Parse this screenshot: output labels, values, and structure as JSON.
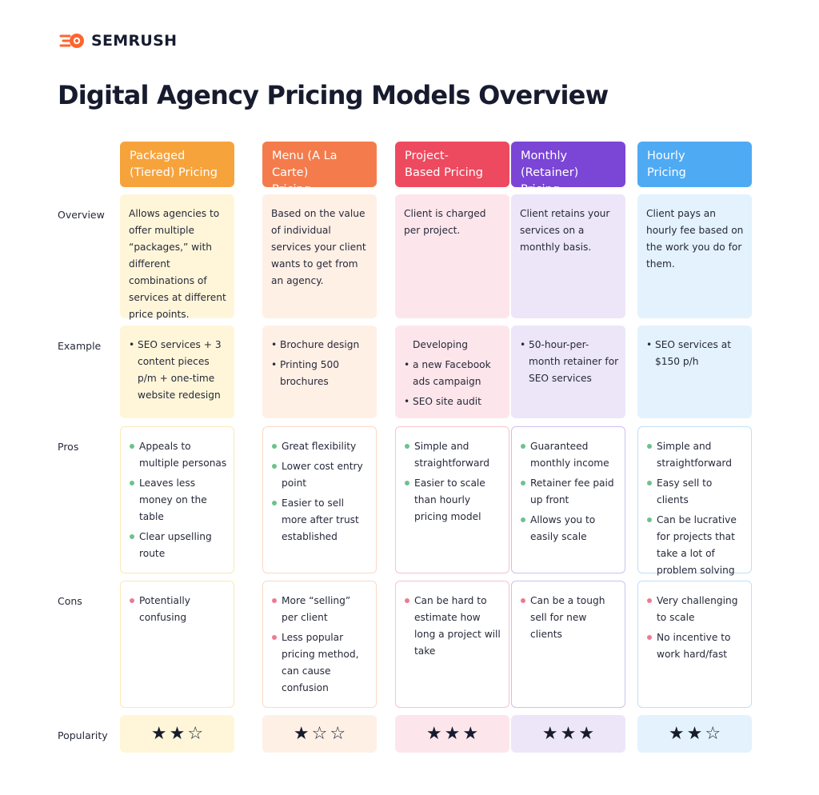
{
  "brand": {
    "name": "SEMRUSH",
    "accent": "#ff642d"
  },
  "title": "Digital Agency Pricing Models Overview",
  "row_labels": {
    "overview": "Overview",
    "example": "Example",
    "pros": "Pros",
    "cons": "Cons",
    "popularity": "Popularity"
  },
  "columns": [
    {
      "header": "Packaged\n(Tiered) Pricing",
      "color": "#f6a33c",
      "tint": "#fff6d9",
      "outline": "#fbe8b7",
      "overview": "Allows agencies to offer multiple “packages,” with different combinations of services at different price points.",
      "example": [
        "SEO services + 3 content pieces p/m + one-time website redesign"
      ],
      "pros": [
        "Appeals to multiple personas",
        "Leaves less money on the table",
        "Clear upselling route"
      ],
      "cons": [
        "Potentially confusing"
      ],
      "popularity": 2
    },
    {
      "header": "Menu (A La Carte)\nPricing",
      "color": "#f47c4c",
      "tint": "#fff0e6",
      "outline": "#fbd9c6",
      "overview": "Based on the value of individual services your client wants to get from an agency.",
      "example": [
        "Brochure design",
        "Printing 500 brochures"
      ],
      "pros": [
        "Great flexibility",
        "Lower cost entry point",
        "Easier to sell more after trust established"
      ],
      "cons": [
        "More “selling” per client",
        "Less popular pricing method, can cause confusion"
      ],
      "popularity": 1
    },
    {
      "header": "Project-\nBased Pricing",
      "color": "#ed4a5f",
      "tint": "#fde6eb",
      "outline": "#f8c3cf",
      "overview": "Client is charged per project.",
      "example_intro": "Developing",
      "example": [
        "a new Facebook ads campaign",
        "SEO site audit"
      ],
      "pros": [
        "Simple and straightforward",
        "Easier to scale than hourly pricing model"
      ],
      "cons": [
        "Can be hard to estimate how long a project will take"
      ],
      "popularity": 3
    },
    {
      "header": "Monthly\n(Retainer) Pricing",
      "color": "#7b45d6",
      "tint": "#ece6f8",
      "outline": "#cfc0ef",
      "overview": "Client retains your services on a monthly basis.",
      "example": [
        "50-hour-per-month retainer for SEO services"
      ],
      "pros": [
        "Guaranteed monthly income",
        "Retainer fee paid up front",
        "Allows you to easily scale"
      ],
      "cons": [
        "Can be a tough sell for new clients"
      ],
      "popularity": 3
    },
    {
      "header": "Hourly\nPricing",
      "color": "#4faaf4",
      "tint": "#e3f2fd",
      "outline": "#bfe0f8",
      "overview": "Client pays an hourly fee based on the work you do for them.",
      "example": [
        "SEO services at $150 p/h"
      ],
      "pros": [
        "Simple and straightforward",
        "Easy sell to clients",
        "Can be lucrative for projects that take a lot of problem solving"
      ],
      "cons": [
        "Very challenging to scale",
        "No incentive to work hard/fast"
      ],
      "popularity": 2
    }
  ]
}
